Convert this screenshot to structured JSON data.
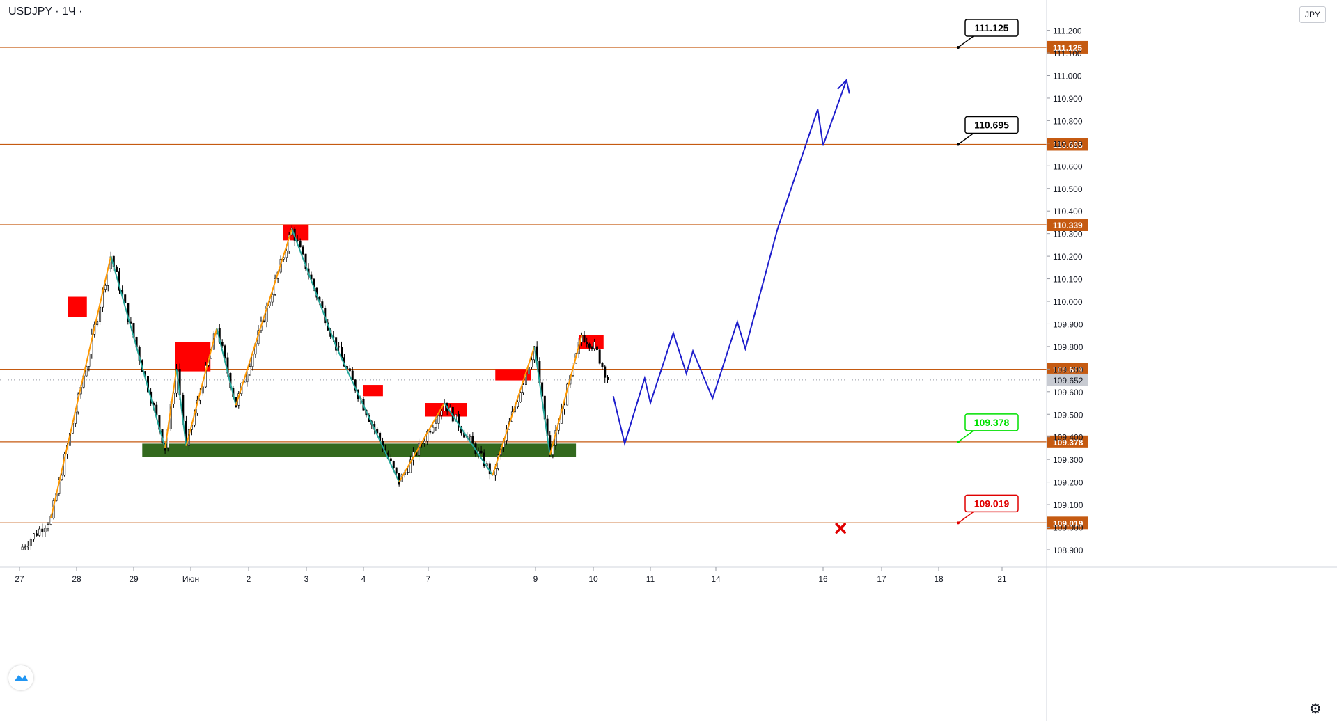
{
  "header": {
    "symbol_label": "USDJPY · 1Ч ·",
    "currency_badge": "JPY"
  },
  "colors": {
    "level": "#c55a11",
    "up_candle": "#26a69a",
    "down_candle": "#26a69a",
    "candle": "#000000",
    "supply": "#ff0000",
    "demand": "#33691e",
    "wave_up": "#ff9800",
    "wave_down": "#26a69a",
    "forecast": "#1e1ecc",
    "target_callout": "#000000",
    "buy_callout": "#00e000",
    "stop_callout": "#e00000"
  },
  "chart_data": {
    "type": "candlestick",
    "title": "USDJPY · 1Ч",
    "y_axis": {
      "ylim": [
        108.84,
        111.2
      ],
      "tick_labels": [
        "111.200",
        "111.100",
        "111.000",
        "110.900",
        "110.800",
        "110.700",
        "110.600",
        "110.500",
        "110.400",
        "110.300",
        "110.200",
        "110.100",
        "110.000",
        "109.900",
        "109.800",
        "109.700",
        "109.600",
        "109.500",
        "109.400",
        "109.300",
        "109.200",
        "109.100",
        "109.000",
        "108.900"
      ],
      "current_price": "109.652"
    },
    "x_axis": {
      "tick_labels": [
        "27",
        "28",
        "29",
        "Июн",
        "2",
        "3",
        "4",
        "7",
        "9",
        "10",
        "11",
        "14",
        "16",
        "17",
        "18",
        "21"
      ]
    },
    "horizontal_levels": [
      {
        "value": 111.125,
        "label": "111.125"
      },
      {
        "value": 110.695,
        "label": "110.695"
      },
      {
        "value": 110.339,
        "label": "110.339"
      },
      {
        "value": 109.699,
        "label": "109.699"
      },
      {
        "value": 109.378,
        "label": "109.378"
      },
      {
        "value": 109.019,
        "label": "109.019"
      }
    ],
    "callouts": [
      {
        "label": "111.125",
        "kind": "target"
      },
      {
        "label": "110.695",
        "kind": "target"
      },
      {
        "label": "109.378",
        "kind": "entry"
      },
      {
        "label": "109.019",
        "kind": "stop"
      }
    ],
    "supply_zones": [
      {
        "x0": 0.85,
        "x1": 1.18,
        "y0": 109.93,
        "y1": 110.02
      },
      {
        "x0": 2.72,
        "x1": 3.34,
        "y0": 109.69,
        "y1": 109.82
      },
      {
        "x0": 4.6,
        "x1": 5.04,
        "y0": 110.27,
        "y1": 110.34
      },
      {
        "x0": 6.0,
        "x1": 6.3,
        "y0": 109.58,
        "y1": 109.63
      },
      {
        "x0": 6.95,
        "x1": 7.72,
        "y0": 109.49,
        "y1": 109.55
      },
      {
        "x0": 8.25,
        "x1": 8.92,
        "y0": 109.65,
        "y1": 109.7
      },
      {
        "x0": 9.75,
        "x1": 10.18,
        "y0": 109.79,
        "y1": 109.85
      }
    ],
    "demand_zones": [
      {
        "x0": 2.15,
        "x1": 9.7,
        "y0": 109.31,
        "y1": 109.37
      }
    ],
    "wave_segments": [
      {
        "kind": "up",
        "pts": [
          [
            0.55,
            109.04
          ],
          [
            1.6,
            110.2
          ]
        ]
      },
      {
        "kind": "down",
        "pts": [
          [
            1.6,
            110.2
          ],
          [
            2.55,
            109.35
          ]
        ]
      },
      {
        "kind": "up",
        "pts": [
          [
            2.55,
            109.35
          ],
          [
            2.75,
            109.7
          ]
        ]
      },
      {
        "kind": "down",
        "pts": [
          [
            2.75,
            109.7
          ],
          [
            2.92,
            109.36
          ]
        ]
      },
      {
        "kind": "up",
        "pts": [
          [
            2.92,
            109.36
          ],
          [
            3.45,
            109.88
          ]
        ]
      },
      {
        "kind": "down",
        "pts": [
          [
            3.45,
            109.88
          ],
          [
            3.78,
            109.54
          ]
        ]
      },
      {
        "kind": "up",
        "pts": [
          [
            3.78,
            109.54
          ],
          [
            4.75,
            110.32
          ]
        ]
      },
      {
        "kind": "down",
        "pts": [
          [
            4.75,
            110.32
          ],
          [
            5.52,
            109.8
          ]
        ]
      },
      {
        "kind": "down",
        "pts": [
          [
            5.52,
            109.8
          ],
          [
            6.55,
            109.2
          ]
        ]
      },
      {
        "kind": "up",
        "pts": [
          [
            6.55,
            109.2
          ],
          [
            7.3,
            109.55
          ]
        ]
      },
      {
        "kind": "down",
        "pts": [
          [
            7.3,
            109.55
          ],
          [
            8.2,
            109.23
          ]
        ]
      },
      {
        "kind": "up",
        "pts": [
          [
            8.2,
            109.23
          ],
          [
            8.98,
            109.8
          ]
        ]
      },
      {
        "kind": "down",
        "pts": [
          [
            8.98,
            109.8
          ],
          [
            9.25,
            109.32
          ]
        ]
      },
      {
        "kind": "up",
        "pts": [
          [
            9.25,
            109.32
          ],
          [
            9.8,
            109.85
          ]
        ]
      }
    ],
    "forecast_path": [
      [
        10.35,
        109.58
      ],
      [
        10.55,
        109.37
      ],
      [
        10.9,
        109.66
      ],
      [
        11.0,
        109.55
      ],
      [
        11.35,
        109.86
      ],
      [
        11.55,
        109.68
      ],
      [
        11.65,
        109.78
      ],
      [
        11.95,
        109.57
      ],
      [
        12.4,
        109.91
      ],
      [
        12.55,
        109.79
      ],
      [
        13.15,
        110.32
      ],
      [
        13.9,
        110.85
      ],
      [
        14.0,
        110.69
      ],
      [
        14.4,
        110.98
      ]
    ],
    "forecast_arrowhead": [
      [
        14.25,
        110.94
      ],
      [
        14.4,
        110.98
      ],
      [
        14.45,
        110.92
      ]
    ],
    "stop_marker": {
      "x": 14.3,
      "y": 108.995
    }
  }
}
